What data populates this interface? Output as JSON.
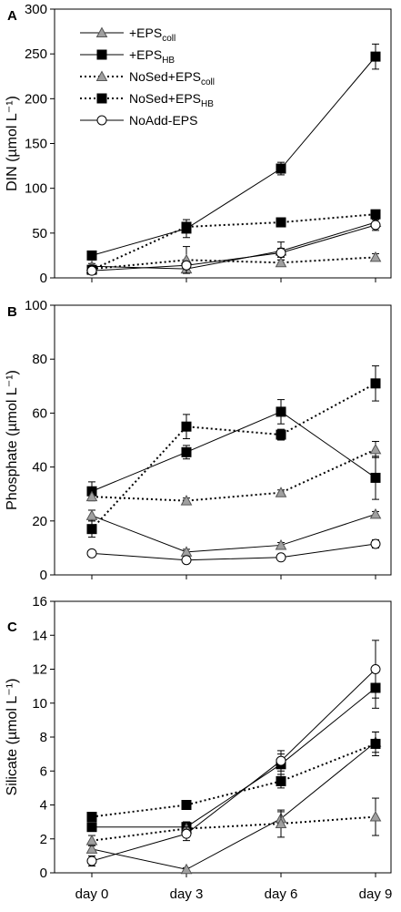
{
  "chart_data": [
    {
      "type": "line",
      "panel_label": "A",
      "ylabel": "DIN (µmol L⁻¹)",
      "ylim": [
        0,
        300
      ],
      "yticks": [
        0,
        50,
        100,
        150,
        200,
        250,
        300
      ],
      "categories": [
        "day 0",
        "day 3",
        "day 6",
        "day 9"
      ],
      "show_x_tick_labels": false,
      "legend": "top-left",
      "series": [
        {
          "name": "+EPScoll",
          "name_main": "+EPS",
          "name_sub": "coll",
          "marker": "triangle",
          "line": "solid",
          "values": [
            13,
            10,
            30,
            62
          ],
          "errors": [
            3,
            3,
            10,
            3
          ]
        },
        {
          "name": "+EPSHB",
          "name_main": "+EPS",
          "name_sub": "HB",
          "marker": "square",
          "line": "solid",
          "values": [
            25,
            55,
            122,
            247
          ],
          "errors": [
            5,
            10,
            7,
            14
          ]
        },
        {
          "name": "NoSed+EPScoll",
          "name_main": "NoSed+EPS",
          "name_sub": "coll",
          "marker": "triangle",
          "line": "dotted",
          "values": [
            10,
            20,
            17,
            23
          ],
          "errors": [
            3,
            15,
            3,
            4
          ]
        },
        {
          "name": "NoSed+EPSHB",
          "name_main": "NoSed+EPS",
          "name_sub": "HB",
          "marker": "square",
          "line": "dotted",
          "values": [
            9,
            57,
            62,
            71
          ],
          "errors": [
            3,
            5,
            3,
            3
          ]
        },
        {
          "name": "NoAdd-EPS",
          "name_main": "NoAdd-EPS",
          "name_sub": "",
          "marker": "circle",
          "line": "solid",
          "values": [
            8,
            14,
            28,
            59
          ],
          "errors": [
            2,
            3,
            5,
            6
          ]
        }
      ]
    },
    {
      "type": "line",
      "panel_label": "B",
      "ylabel": "Phosphate (µmol L⁻¹)",
      "ylim": [
        0,
        100
      ],
      "yticks": [
        0,
        20,
        40,
        60,
        80,
        100
      ],
      "categories": [
        "day 0",
        "day 3",
        "day 6",
        "day 9"
      ],
      "show_x_tick_labels": false,
      "series": [
        {
          "name": "+EPScoll",
          "marker": "triangle",
          "line": "solid",
          "values": [
            22,
            8.5,
            11,
            22.5
          ],
          "errors": [
            2,
            1,
            1,
            1
          ]
        },
        {
          "name": "+EPSHB",
          "marker": "square",
          "line": "solid",
          "values": [
            31,
            45.5,
            60.5,
            36
          ],
          "errors": [
            3.5,
            2.5,
            4.5,
            8
          ]
        },
        {
          "name": "NoSed+EPScoll",
          "marker": "triangle",
          "line": "dotted",
          "values": [
            29,
            27.5,
            30.5,
            46.5
          ],
          "errors": [
            1.5,
            1,
            1,
            3
          ]
        },
        {
          "name": "NoSed+EPSHB",
          "marker": "square",
          "line": "dotted",
          "values": [
            17,
            55,
            52,
            71
          ],
          "errors": [
            3,
            4.5,
            2,
            6.5
          ]
        },
        {
          "name": "NoAdd-EPS",
          "marker": "circle",
          "line": "solid",
          "values": [
            8,
            5.5,
            6.5,
            11.5
          ],
          "errors": [
            0.5,
            0.5,
            0.5,
            1.5
          ]
        }
      ]
    },
    {
      "type": "line",
      "panel_label": "C",
      "ylabel": "Silicate (µmol L⁻¹)",
      "ylim": [
        0,
        16
      ],
      "yticks": [
        0,
        2,
        4,
        6,
        8,
        10,
        12,
        14,
        16
      ],
      "categories": [
        "day 0",
        "day 3",
        "day 6",
        "day 9"
      ],
      "show_x_tick_labels": true,
      "series": [
        {
          "name": "+EPScoll",
          "marker": "triangle",
          "line": "solid",
          "values": [
            1.4,
            0.2,
            3.2,
            7.7
          ],
          "errors": [
            0.2,
            0.1,
            0.4,
            0.6
          ]
        },
        {
          "name": "+EPSHB",
          "marker": "square",
          "line": "solid",
          "values": [
            2.7,
            2.7,
            6.4,
            10.9
          ],
          "errors": [
            0.2,
            0.3,
            0.6,
            1.2
          ]
        },
        {
          "name": "NoSed+EPScoll",
          "marker": "triangle",
          "line": "dotted",
          "values": [
            1.9,
            2.6,
            2.9,
            3.3
          ],
          "errors": [
            0.3,
            0.4,
            0.8,
            1.1
          ]
        },
        {
          "name": "NoSed+EPSHB",
          "marker": "square",
          "line": "dotted",
          "values": [
            3.3,
            4.0,
            5.4,
            7.6
          ],
          "errors": [
            0.2,
            0.1,
            0.4,
            0.7
          ]
        },
        {
          "name": "NoAdd-EPS",
          "marker": "circle",
          "line": "solid",
          "values": [
            0.7,
            2.3,
            6.6,
            12.0
          ],
          "errors": [
            0.3,
            0.4,
            0.6,
            1.7
          ]
        }
      ]
    }
  ]
}
